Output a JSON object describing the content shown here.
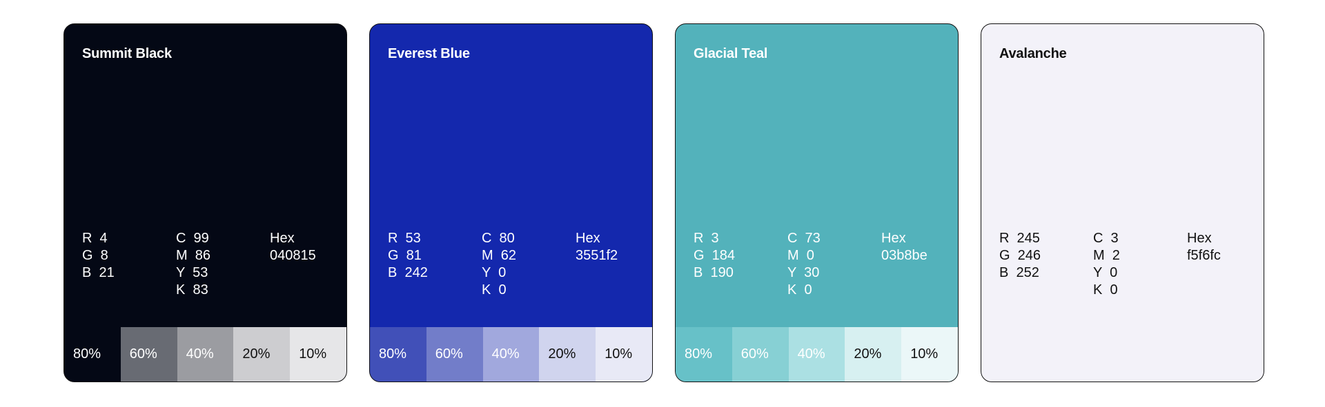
{
  "cards": [
    {
      "name": "Summit Black",
      "bg": "#040815",
      "text_color": "#ffffff",
      "rgb": [
        "R  4",
        "G  8",
        "B  21"
      ],
      "cmyk": [
        "C  99",
        "M  86",
        "Y  53",
        "K  83"
      ],
      "hex_label": "Hex",
      "hex": "040815",
      "tints": [
        {
          "label": "80%",
          "bg": "#040815",
          "color": "#ffffff"
        },
        {
          "label": "60%",
          "bg": "#686b73",
          "color": "#ffffff"
        },
        {
          "label": "40%",
          "bg": "#9b9ca1",
          "color": "#ffffff"
        },
        {
          "label": "20%",
          "bg": "#cdcdd0",
          "color": "#111111"
        },
        {
          "label": "10%",
          "bg": "#e6e6e8",
          "color": "#111111"
        }
      ]
    },
    {
      "name": "Everest Blue",
      "bg": "#1428ad",
      "text_color": "#ffffff",
      "rgb": [
        "R  53",
        "G  81",
        "B  242"
      ],
      "cmyk": [
        "C  80",
        "M  62",
        "Y  0",
        "K  0"
      ],
      "hex_label": "Hex",
      "hex": "3551f2",
      "tints": [
        {
          "label": "80%",
          "bg": "#4150b8",
          "color": "#ffffff"
        },
        {
          "label": "60%",
          "bg": "#727dc9",
          "color": "#ffffff"
        },
        {
          "label": "40%",
          "bg": "#a1a8dd",
          "color": "#ffffff"
        },
        {
          "label": "20%",
          "bg": "#d0d4ee",
          "color": "#111111"
        },
        {
          "label": "10%",
          "bg": "#e8e9f6",
          "color": "#111111"
        }
      ]
    },
    {
      "name": "Glacial Teal",
      "bg": "#53b2bb",
      "text_color": "#ffffff",
      "rgb": [
        "R  3",
        "G  184",
        "B  190"
      ],
      "cmyk": [
        "C  73",
        "M  0",
        "Y  30",
        "K  0"
      ],
      "hex_label": "Hex",
      "hex": "03b8be",
      "tints": [
        {
          "label": "80%",
          "bg": "#67c1c8",
          "color": "#ffffff"
        },
        {
          "label": "60%",
          "bg": "#87d0d4",
          "color": "#ffffff"
        },
        {
          "label": "40%",
          "bg": "#abe0e3",
          "color": "#ffffff"
        },
        {
          "label": "20%",
          "bg": "#d7f0f1",
          "color": "#111111"
        },
        {
          "label": "10%",
          "bg": "#ebf7f8",
          "color": "#111111"
        }
      ]
    },
    {
      "name": "Avalanche",
      "bg": "#f3f2f9",
      "text_color": "#111111",
      "rgb": [
        "R  245",
        "G  246",
        "B  252"
      ],
      "cmyk": [
        "C  3",
        "M  2",
        "Y  0",
        "K  0"
      ],
      "hex_label": "Hex",
      "hex": "f5f6fc",
      "tints": []
    }
  ]
}
